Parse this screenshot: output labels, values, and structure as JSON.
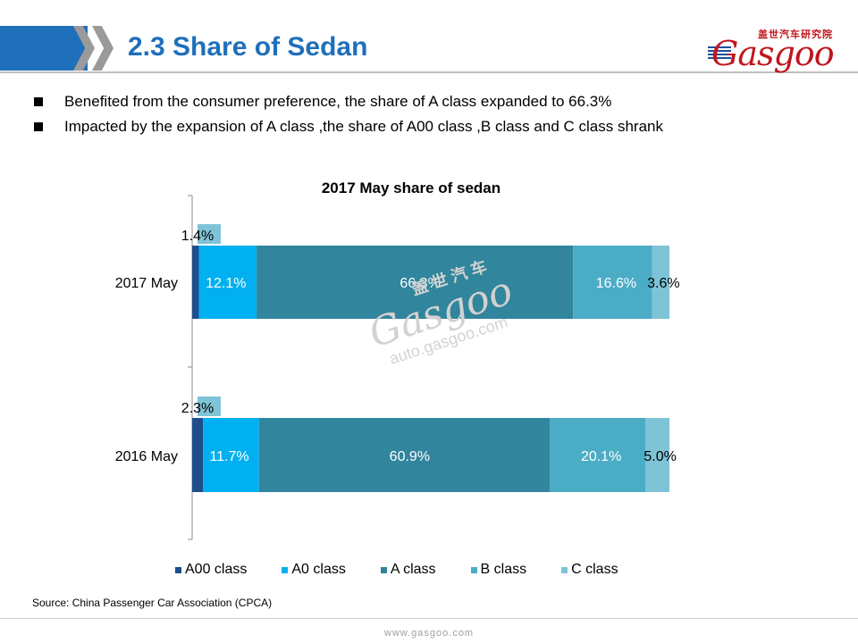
{
  "header": {
    "title": "2.3 Share of Sedan",
    "logo_cn": "盖世汽车研究院",
    "logo_en": "Gasgoo",
    "accent_color": "#1f6fba",
    "logo_color": "#c0161e"
  },
  "bullets": [
    "Benefited from the consumer preference, the share of A class expanded  to 66.3%",
    "Impacted by the expansion of A class ,the share of A00 class ,B class and C class shrank"
  ],
  "watermark": {
    "cn": "盖 世 汽 车",
    "logo": "Gasgoo",
    "url": "auto.gasgoo.com"
  },
  "chart_data": {
    "type": "bar",
    "orientation": "horizontal",
    "stacked": true,
    "title": "2017 May share of sedan",
    "categories": [
      "2017 May",
      "2016 May"
    ],
    "series": [
      {
        "name": "A00 class",
        "color": "#1f4e8c",
        "values": [
          1.4,
          2.3
        ],
        "labels": [
          "1.4%",
          "2.3%"
        ]
      },
      {
        "name": "A0 class",
        "color": "#00b0f0",
        "values": [
          12.1,
          11.7
        ],
        "labels": [
          "12.1%",
          "11.7%"
        ]
      },
      {
        "name": "A class",
        "color": "#31859c",
        "values": [
          66.3,
          60.9
        ],
        "labels": [
          "66.3%",
          "60.9%"
        ]
      },
      {
        "name": "B class",
        "color": "#4bacc6",
        "values": [
          16.6,
          20.1
        ],
        "labels": [
          "16.6%",
          "20.1%"
        ]
      },
      {
        "name": "C class",
        "color": "#7fc3d6",
        "values": [
          3.6,
          5.0
        ],
        "labels": [
          "3.6%",
          "5.0%"
        ]
      }
    ],
    "xlim": [
      0,
      100
    ],
    "legend_position": "bottom",
    "grid": false
  },
  "source": "Source: China Passenger Car Association (CPCA)",
  "footer_url": "www.gasgoo.com"
}
